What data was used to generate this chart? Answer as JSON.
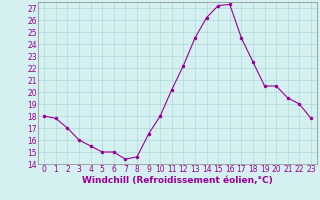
{
  "x": [
    0,
    1,
    2,
    3,
    4,
    5,
    6,
    7,
    8,
    9,
    10,
    11,
    12,
    13,
    14,
    15,
    16,
    17,
    18,
    19,
    20,
    21,
    22,
    23
  ],
  "y": [
    18,
    17.8,
    17,
    16,
    15.5,
    15,
    15,
    14.4,
    14.6,
    16.5,
    18,
    20.2,
    22.2,
    24.5,
    26.2,
    27.2,
    27.3,
    24.5,
    22.5,
    20.5,
    20.5,
    19.5,
    19,
    17.8
  ],
  "line_color": "#990099",
  "marker": "o",
  "marker_size": 1.5,
  "bg_color": "#d4f0f0",
  "grid_color": "#b0d8d8",
  "xlabel": "Windchill (Refroidissement éolien,°C)",
  "xlabel_fontsize": 6.5,
  "ylim": [
    14,
    27.5
  ],
  "xlim": [
    -0.5,
    23.5
  ],
  "yticks": [
    14,
    15,
    16,
    17,
    18,
    19,
    20,
    21,
    22,
    23,
    24,
    25,
    26,
    27
  ],
  "xticks": [
    0,
    1,
    2,
    3,
    4,
    5,
    6,
    7,
    8,
    9,
    10,
    11,
    12,
    13,
    14,
    15,
    16,
    17,
    18,
    19,
    20,
    21,
    22,
    23
  ],
  "tick_fontsize": 5.5,
  "line_color_hex": "#990099"
}
